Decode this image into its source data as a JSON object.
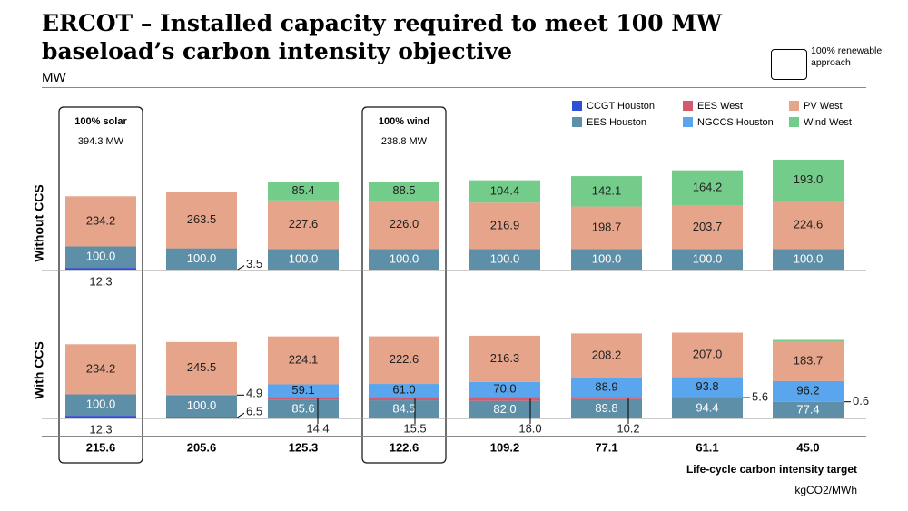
{
  "title": "ERCOT – Installed capacity required to meet 100 MW baseload’s carbon intensity objective",
  "unit": "MW",
  "renewable_approach_label": "100% renewable approach",
  "x_axis_title": "Life-cycle carbon intensity target",
  "x_axis_unit": "kgCO2/MWh",
  "colors": {
    "CCGT Houston": "#2f4fd8",
    "EES West": "#d45a6d",
    "PV West": "#e6a58a",
    "EES Houston": "#5e8fa8",
    "NGCCS Houston": "#5aa6ee",
    "Wind West": "#74cc8b"
  },
  "chart_data": {
    "type": "bar",
    "stacked": true,
    "title": "ERCOT – Installed capacity required to meet 100 MW baseload’s carbon intensity objective",
    "ylabel": "MW",
    "xlabel": "Life-cycle carbon intensity target",
    "x_unit": "kgCO2/MWh",
    "categories": [
      "215.6",
      "205.6",
      "125.3",
      "122.6",
      "109.2",
      "77.1",
      "61.1",
      "45.0"
    ],
    "legend": [
      "CCGT Houston",
      "EES West",
      "PV West",
      "EES Houston",
      "NGCCS Houston",
      "Wind West"
    ],
    "legend_position": "top-right",
    "highlighted_columns": [
      {
        "category": "215.6",
        "label": "100% solar",
        "total": "394.3 MW"
      },
      {
        "category": "122.6",
        "label": "100% wind",
        "total": "238.8 MW"
      }
    ],
    "panels": [
      {
        "name": "Without CCS",
        "series": [
          {
            "name": "CCGT Houston",
            "values": [
              12.3,
              3.5,
              0,
              0,
              0,
              0,
              0,
              0
            ]
          },
          {
            "name": "EES Houston",
            "values": [
              100.0,
              100.0,
              100.0,
              100.0,
              100.0,
              100.0,
              100.0,
              100.0
            ]
          },
          {
            "name": "NGCCS Houston",
            "values": [
              0,
              0,
              0,
              0,
              0,
              0,
              0,
              0
            ]
          },
          {
            "name": "EES West",
            "values": [
              0,
              0,
              0,
              0,
              0,
              0,
              0,
              0
            ]
          },
          {
            "name": "PV West",
            "values": [
              234.2,
              263.5,
              227.6,
              226.0,
              216.9,
              198.7,
              203.7,
              224.6
            ]
          },
          {
            "name": "Wind West",
            "values": [
              0,
              0,
              85.4,
              88.5,
              104.4,
              142.1,
              164.2,
              193.0
            ]
          }
        ]
      },
      {
        "name": "With CCS",
        "series": [
          {
            "name": "CCGT Houston",
            "values": [
              12.3,
              6.5,
              0,
              0,
              0,
              0,
              0,
              0
            ]
          },
          {
            "name": "EES Houston",
            "values": [
              100.0,
              100.0,
              85.6,
              84.5,
              82.0,
              89.8,
              94.4,
              77.4
            ]
          },
          {
            "name": "EES West",
            "values": [
              0,
              0,
              14.4,
              15.5,
              18.0,
              10.2,
              5.6,
              0.6
            ]
          },
          {
            "name": "NGCCS Houston",
            "values": [
              0,
              4.9,
              59.1,
              61.0,
              70.0,
              88.9,
              93.8,
              96.2
            ]
          },
          {
            "name": "PV West",
            "values": [
              234.2,
              245.5,
              224.1,
              222.6,
              216.3,
              208.2,
              207.0,
              183.7
            ]
          },
          {
            "name": "Wind West",
            "values": [
              0,
              0,
              0,
              0,
              0,
              0,
              0,
              9.0
            ]
          }
        ]
      }
    ],
    "labels": {
      "Without CCS": {
        "CCGT Houston": [
          "12.3",
          "3.5",
          "",
          "",
          "",
          "",
          "",
          ""
        ],
        "EES Houston": [
          "100.0",
          "100.0",
          "100.0",
          "100.0",
          "100.0",
          "100.0",
          "100.0",
          "100.0"
        ],
        "PV West": [
          "234.2",
          "263.5",
          "227.6",
          "226.0",
          "216.9",
          "198.7",
          "203.7",
          "224.6"
        ],
        "Wind West": [
          "",
          "",
          "85.4",
          "88.5",
          "104.4",
          "142.1",
          "164.2",
          "193.0"
        ]
      },
      "With CCS": {
        "CCGT Houston": [
          "12.3",
          "6.5",
          "",
          "",
          "",
          "",
          "",
          ""
        ],
        "EES Houston": [
          "100.0",
          "100.0",
          "85.6",
          "84.5",
          "82.0",
          "89.8",
          "94.4",
          "77.4"
        ],
        "EES West": [
          "",
          "",
          "14.4",
          "15.5",
          "18.0",
          "10.2",
          "5.6",
          "0.6"
        ],
        "NGCCS Houston": [
          "",
          "4.9",
          "59.1",
          "61.0",
          "70.0",
          "88.9",
          "93.8",
          "96.2"
        ],
        "PV West": [
          "234.2",
          "245.5",
          "224.1",
          "222.6",
          "216.3",
          "208.2",
          "207.0",
          "183.7"
        ]
      }
    }
  }
}
